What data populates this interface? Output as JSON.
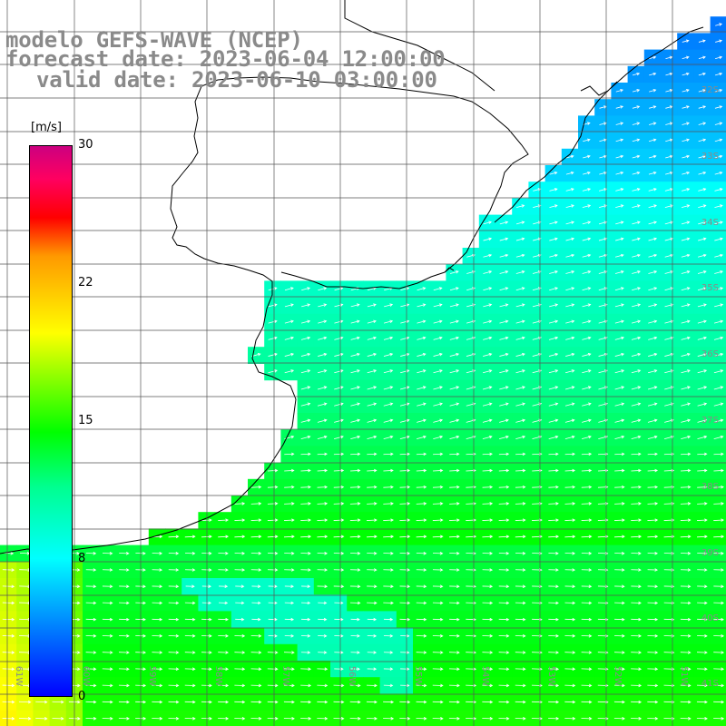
{
  "title": {
    "line1": "modelo GEFS-WAVE (NCEP)",
    "line2": "forecast date: 2023-06-04 12:00:00",
    "line3": "valid date: 2023-06-10 03:00:00"
  },
  "colorbar": {
    "unit": "[m/s]",
    "ticks": [
      "30",
      "22",
      "15",
      "8",
      "0"
    ],
    "colors": [
      "#0000ff",
      "#00b8ff",
      "#00ffff",
      "#00ff90",
      "#00ff00",
      "#ffff00",
      "#ff9900",
      "#ff0000",
      "#ff0060",
      "#cc0080"
    ]
  },
  "lat_labels": [
    "32S",
    "33S",
    "34S",
    "35S",
    "36S",
    "37S",
    "38S",
    "39S",
    "40S",
    "41S"
  ],
  "lon_labels": [
    "61W",
    "60W",
    "59W",
    "58W",
    "57W",
    "56W",
    "55W",
    "54W",
    "53W",
    "52W",
    "51W"
  ],
  "colors": {
    "land": "#ffffff",
    "coastline": "#000000",
    "grid": "#555555",
    "arrows": "#ffffff",
    "label_gray": "#8a8a8a"
  }
}
